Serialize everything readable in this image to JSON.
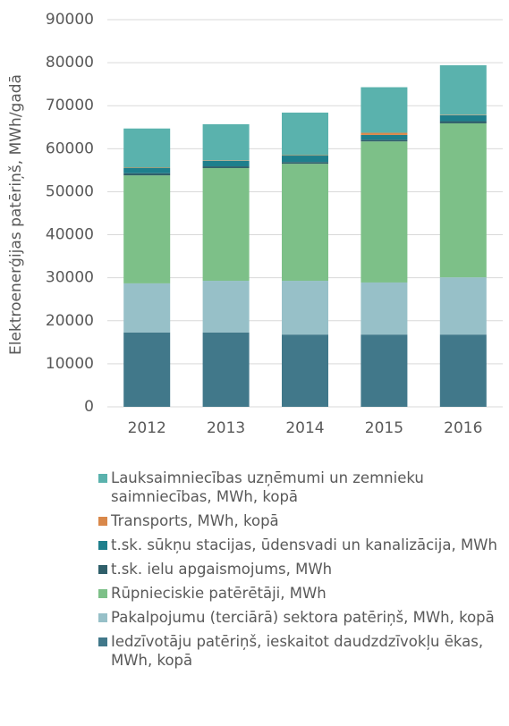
{
  "chart_data": {
    "type": "stacked_bar",
    "y_label": "Elektroenerģijas patēriņš, MWh/gadā",
    "categories": [
      "2012",
      "2013",
      "2014",
      "2015",
      "2016"
    ],
    "series": [
      {
        "name": "Iedzīvotāju patēriņš, ieskaitot daudzdzīvokļu ēkas, MWh, kopā",
        "color": "#41788a",
        "values": [
          17300,
          17300,
          16800,
          16800,
          16800
        ]
      },
      {
        "name": "Pakalpojumu (terciārā) sektora patēriņš, MWh, kopā",
        "color": "#97c0c8",
        "values": [
          11400,
          12000,
          12500,
          12100,
          13300
        ]
      },
      {
        "name": "Rūpnieciskie patērētāji, MWh",
        "color": "#7dc088",
        "values": [
          25100,
          26200,
          27200,
          32800,
          35800
        ]
      },
      {
        "name": "t.sk. ielu apgaismojums, MWh",
        "color": "#2f5f6a",
        "values": [
          500,
          400,
          400,
          400,
          500
        ]
      },
      {
        "name": "t.sk. sūkņu stacijas, ūdensvadi un kanalizācija, MWh",
        "color": "#1e7f8c",
        "values": [
          1200,
          1300,
          1500,
          1100,
          1400
        ]
      },
      {
        "name": "Transports, MWh, kopā",
        "color": "#d9884a",
        "values": [
          100,
          100,
          100,
          500,
          100
        ]
      },
      {
        "name": "Lauksaimniecības uzņēmumi un zemnieku saimniecības, MWh, kopā",
        "color": "#5ab2ad",
        "values": [
          9100,
          8400,
          9900,
          10600,
          11500
        ]
      }
    ],
    "ylim": [
      0,
      90000
    ],
    "yticks": [
      0,
      10000,
      20000,
      30000,
      40000,
      50000,
      60000,
      70000,
      80000,
      90000
    ],
    "grid": true
  }
}
